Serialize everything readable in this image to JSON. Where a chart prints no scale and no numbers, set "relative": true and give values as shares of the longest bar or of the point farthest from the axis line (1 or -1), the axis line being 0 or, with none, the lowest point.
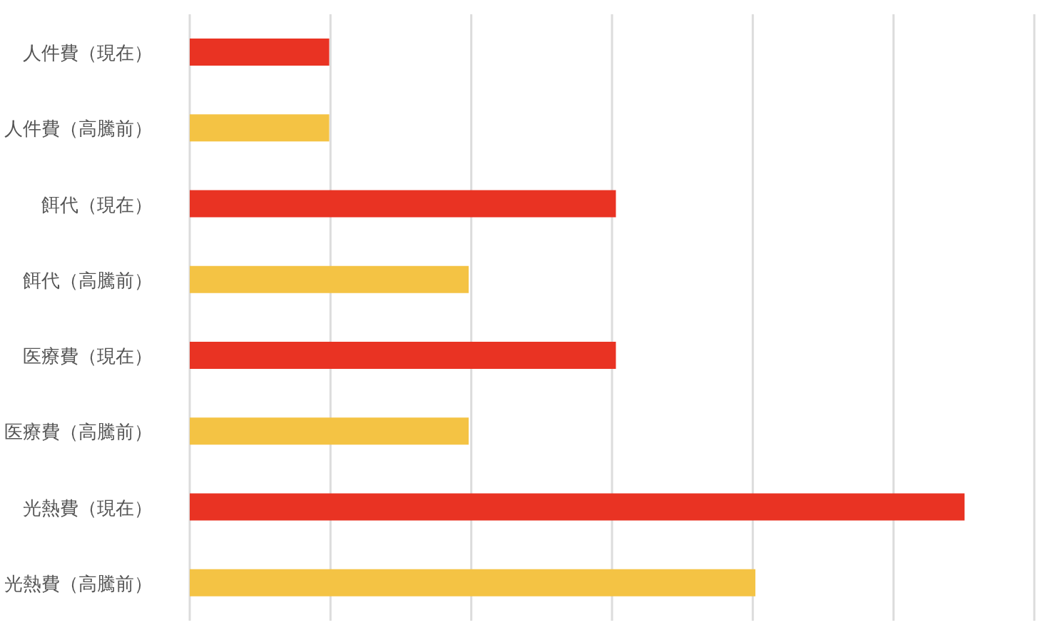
{
  "chart_data": {
    "type": "bar",
    "orientation": "horizontal",
    "relative": true,
    "grid": "x",
    "categories": [
      "人件費（現在）",
      "人件費（高騰前）",
      "餌代（現在）",
      "餌代（高騰前）",
      "医療費（現在）",
      "医療費（高騰前）",
      "光熱費（現在）",
      "光熱費（高騰前）"
    ],
    "values": [
      0.18,
      0.18,
      0.55,
      0.36,
      0.55,
      0.36,
      1,
      0.73
    ],
    "colors": [
      "#e93323",
      "#f4c344",
      "#e93323",
      "#f4c344",
      "#e93323",
      "#f4c344",
      "#e93323",
      "#f4c344"
    ]
  }
}
